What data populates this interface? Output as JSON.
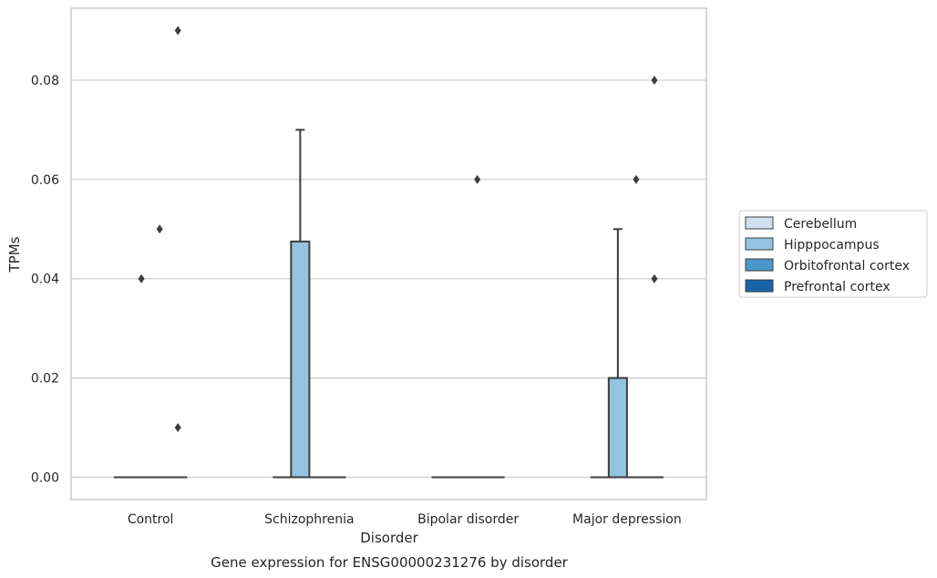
{
  "chart_data": {
    "type": "box",
    "caption": "Gene expression for ENSG00000231276 by disorder",
    "xlabel": "Disorder",
    "ylabel": "TPMs",
    "ylim": [
      -0.0045,
      0.0945
    ],
    "yticks": [
      0.0,
      0.02,
      0.04,
      0.06,
      0.08
    ],
    "ytick_labels": [
      "0.00",
      "0.02",
      "0.04",
      "0.06",
      "0.08"
    ],
    "grid": "horizontal",
    "legend_placement": "outside-right",
    "categories": [
      "Control",
      "Schizophrenia",
      "Bipolar disorder",
      "Major depression"
    ],
    "series": [
      {
        "name": "Cerebellum",
        "color": "#d0e1f2"
      },
      {
        "name": "Hipppocampus",
        "color": "#94c4df"
      },
      {
        "name": "Orbitofrontal cortex",
        "color": "#4a98c9"
      },
      {
        "name": "Prefrontal cortex",
        "color": "#1764ab"
      }
    ],
    "boxes": [
      {
        "category": "Control",
        "series": "Cerebellum",
        "q1": 0,
        "median": 0,
        "q3": 0,
        "whisker_low": 0,
        "whisker_high": 0,
        "outliers": []
      },
      {
        "category": "Control",
        "series": "Hipppocampus",
        "q1": 0,
        "median": 0,
        "q3": 0,
        "whisker_low": 0,
        "whisker_high": 0,
        "outliers": [
          0.04
        ]
      },
      {
        "category": "Control",
        "series": "Orbitofrontal cortex",
        "q1": 0,
        "median": 0,
        "q3": 0,
        "whisker_low": 0,
        "whisker_high": 0,
        "outliers": [
          0.05
        ]
      },
      {
        "category": "Control",
        "series": "Prefrontal cortex",
        "q1": 0,
        "median": 0,
        "q3": 0,
        "whisker_low": 0,
        "whisker_high": 0,
        "outliers": [
          0.09,
          0.01
        ]
      },
      {
        "category": "Schizophrenia",
        "series": "Cerebellum",
        "q1": 0,
        "median": 0,
        "q3": 0,
        "whisker_low": 0,
        "whisker_high": 0,
        "outliers": []
      },
      {
        "category": "Schizophrenia",
        "series": "Hipppocampus",
        "q1": 0,
        "median": 0,
        "q3": 0.0475,
        "whisker_low": 0,
        "whisker_high": 0.07,
        "outliers": []
      },
      {
        "category": "Schizophrenia",
        "series": "Orbitofrontal cortex",
        "q1": 0,
        "median": 0,
        "q3": 0,
        "whisker_low": 0,
        "whisker_high": 0,
        "outliers": []
      },
      {
        "category": "Schizophrenia",
        "series": "Prefrontal cortex",
        "q1": 0,
        "median": 0,
        "q3": 0,
        "whisker_low": 0,
        "whisker_high": 0,
        "outliers": []
      },
      {
        "category": "Bipolar disorder",
        "series": "Cerebellum",
        "q1": 0,
        "median": 0,
        "q3": 0,
        "whisker_low": 0,
        "whisker_high": 0,
        "outliers": []
      },
      {
        "category": "Bipolar disorder",
        "series": "Hipppocampus",
        "q1": 0,
        "median": 0,
        "q3": 0,
        "whisker_low": 0,
        "whisker_high": 0,
        "outliers": []
      },
      {
        "category": "Bipolar disorder",
        "series": "Orbitofrontal cortex",
        "q1": 0,
        "median": 0,
        "q3": 0,
        "whisker_low": 0,
        "whisker_high": 0,
        "outliers": [
          0.06
        ]
      },
      {
        "category": "Bipolar disorder",
        "series": "Prefrontal cortex",
        "q1": 0,
        "median": 0,
        "q3": 0,
        "whisker_low": 0,
        "whisker_high": 0,
        "outliers": []
      },
      {
        "category": "Major depression",
        "series": "Cerebellum",
        "q1": 0,
        "median": 0,
        "q3": 0,
        "whisker_low": 0,
        "whisker_high": 0,
        "outliers": []
      },
      {
        "category": "Major depression",
        "series": "Hipppocampus",
        "q1": 0,
        "median": 0,
        "q3": 0.02,
        "whisker_low": 0,
        "whisker_high": 0.05,
        "outliers": []
      },
      {
        "category": "Major depression",
        "series": "Orbitofrontal cortex",
        "q1": 0,
        "median": 0,
        "q3": 0,
        "whisker_low": 0,
        "whisker_high": 0,
        "outliers": [
          0.06
        ]
      },
      {
        "category": "Major depression",
        "series": "Prefrontal cortex",
        "q1": 0,
        "median": 0,
        "q3": 0,
        "whisker_low": 0,
        "whisker_high": 0,
        "outliers": [
          0.08,
          0.04
        ]
      }
    ]
  }
}
